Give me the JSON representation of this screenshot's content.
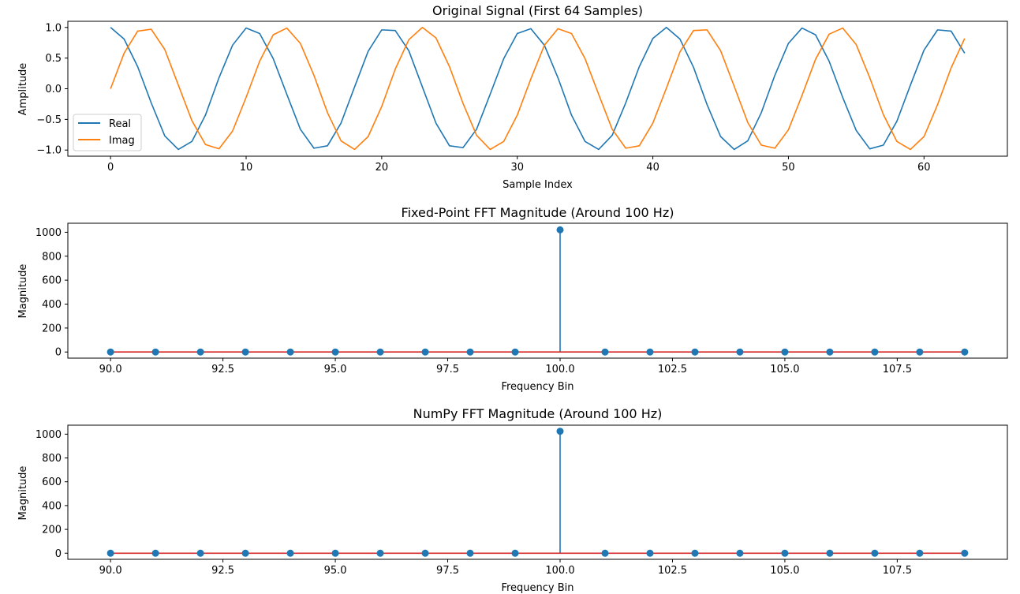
{
  "chart_data": [
    {
      "type": "line",
      "title": "Original Signal (First 64 Samples)",
      "xlabel": "Sample Index",
      "ylabel": "Amplitude",
      "xlim": [
        -3.15,
        66.15
      ],
      "ylim": [
        -1.1,
        1.1
      ],
      "xticks": [
        0,
        10,
        20,
        30,
        40,
        50,
        60
      ],
      "xtick_labels": [
        "0",
        "10",
        "20",
        "30",
        "40",
        "50",
        "60"
      ],
      "yticks": [
        -1.0,
        -0.5,
        0.0,
        0.5,
        1.0
      ],
      "ytick_labels": [
        "−1.0",
        "−0.5",
        "0.0",
        "0.5",
        "1.0"
      ],
      "grid": false,
      "legend": "lower-left",
      "x": [
        0,
        1,
        2,
        3,
        4,
        5,
        6,
        7,
        8,
        9,
        10,
        11,
        12,
        13,
        14,
        15,
        16,
        17,
        18,
        19,
        20,
        21,
        22,
        23,
        24,
        25,
        26,
        27,
        28,
        29,
        30,
        31,
        32,
        33,
        34,
        35,
        36,
        37,
        38,
        39,
        40,
        41,
        42,
        43,
        44,
        45,
        46,
        47,
        48,
        49,
        50,
        51,
        52,
        53,
        54,
        55,
        56,
        57,
        58,
        59,
        60,
        61,
        62,
        63
      ],
      "series": [
        {
          "name": "Real",
          "color": "#1f77b4",
          "values": [
            1.0,
            0.81,
            0.36,
            -0.23,
            -0.77,
            -0.99,
            -0.86,
            -0.43,
            0.18,
            0.71,
            0.99,
            0.9,
            0.49,
            -0.09,
            -0.66,
            -0.97,
            -0.93,
            -0.56,
            0.03,
            0.61,
            0.96,
            0.95,
            0.62,
            0.03,
            -0.56,
            -0.93,
            -0.96,
            -0.66,
            -0.09,
            0.49,
            0.9,
            0.98,
            0.71,
            0.18,
            -0.43,
            -0.86,
            -0.99,
            -0.76,
            -0.23,
            0.36,
            0.82,
            1.0,
            0.81,
            0.35,
            -0.26,
            -0.78,
            -0.99,
            -0.85,
            -0.39,
            0.22,
            0.74,
            0.99,
            0.88,
            0.45,
            -0.14,
            -0.68,
            -0.98,
            -0.92,
            -0.53,
            0.06,
            0.63,
            0.96,
            0.94,
            0.58
          ]
        },
        {
          "name": "Imag",
          "color": "#ff7f0e",
          "values": [
            0.0,
            0.58,
            0.94,
            0.97,
            0.64,
            0.06,
            -0.52,
            -0.91,
            -0.98,
            -0.69,
            -0.14,
            0.45,
            0.88,
            0.99,
            0.74,
            0.22,
            -0.39,
            -0.85,
            -0.99,
            -0.78,
            -0.29,
            0.32,
            0.8,
            1.0,
            0.83,
            0.36,
            -0.24,
            -0.76,
            -0.99,
            -0.86,
            -0.43,
            0.16,
            0.71,
            0.98,
            0.9,
            0.49,
            -0.09,
            -0.66,
            -0.97,
            -0.93,
            -0.56,
            0.01,
            0.6,
            0.95,
            0.96,
            0.62,
            0.04,
            -0.55,
            -0.92,
            -0.97,
            -0.67,
            -0.11,
            0.48,
            0.89,
            0.99,
            0.72,
            0.18,
            -0.42,
            -0.86,
            -0.99,
            -0.78,
            -0.26,
            0.34,
            0.82
          ]
        }
      ]
    },
    {
      "type": "stem",
      "title": "Fixed-Point FFT Magnitude (Around 100 Hz)",
      "xlabel": "Frequency Bin",
      "ylabel": "Magnitude",
      "xlim": [
        89.05,
        109.95
      ],
      "ylim": [
        -51.2,
        1075.2
      ],
      "xticks": [
        90.0,
        92.5,
        95.0,
        97.5,
        100.0,
        102.5,
        105.0,
        107.5
      ],
      "xtick_labels": [
        "90.0",
        "92.5",
        "95.0",
        "97.5",
        "100.0",
        "102.5",
        "105.0",
        "107.5"
      ],
      "yticks": [
        0,
        200,
        400,
        600,
        800,
        1000
      ],
      "ytick_labels": [
        "0",
        "200",
        "400",
        "600",
        "800",
        "1000"
      ],
      "grid": false,
      "baseline_color": "#d62728",
      "marker_color": "#1f77b4",
      "x": [
        90,
        91,
        92,
        93,
        94,
        95,
        96,
        97,
        98,
        99,
        100,
        101,
        102,
        103,
        104,
        105,
        106,
        107,
        108,
        109
      ],
      "values": [
        0,
        0,
        0,
        0,
        0,
        0,
        0,
        0,
        0,
        0,
        1020,
        0,
        0,
        0,
        0,
        0,
        0,
        0,
        0,
        0
      ]
    },
    {
      "type": "stem",
      "title": "NumPy FFT Magnitude (Around 100 Hz)",
      "xlabel": "Frequency Bin",
      "ylabel": "Magnitude",
      "xlim": [
        89.05,
        109.95
      ],
      "ylim": [
        -51.2,
        1075.2
      ],
      "xticks": [
        90.0,
        92.5,
        95.0,
        97.5,
        100.0,
        102.5,
        105.0,
        107.5
      ],
      "xtick_labels": [
        "90.0",
        "92.5",
        "95.0",
        "97.5",
        "100.0",
        "102.5",
        "105.0",
        "107.5"
      ],
      "yticks": [
        0,
        200,
        400,
        600,
        800,
        1000
      ],
      "ytick_labels": [
        "0",
        "200",
        "400",
        "600",
        "800",
        "1000"
      ],
      "grid": false,
      "baseline_color": "#d62728",
      "marker_color": "#1f77b4",
      "x": [
        90,
        91,
        92,
        93,
        94,
        95,
        96,
        97,
        98,
        99,
        100,
        101,
        102,
        103,
        104,
        105,
        106,
        107,
        108,
        109
      ],
      "values": [
        0,
        0,
        0,
        0,
        0,
        0,
        0,
        0,
        0,
        0,
        1024,
        0,
        0,
        0,
        0,
        0,
        0,
        0,
        0,
        0
      ]
    }
  ]
}
